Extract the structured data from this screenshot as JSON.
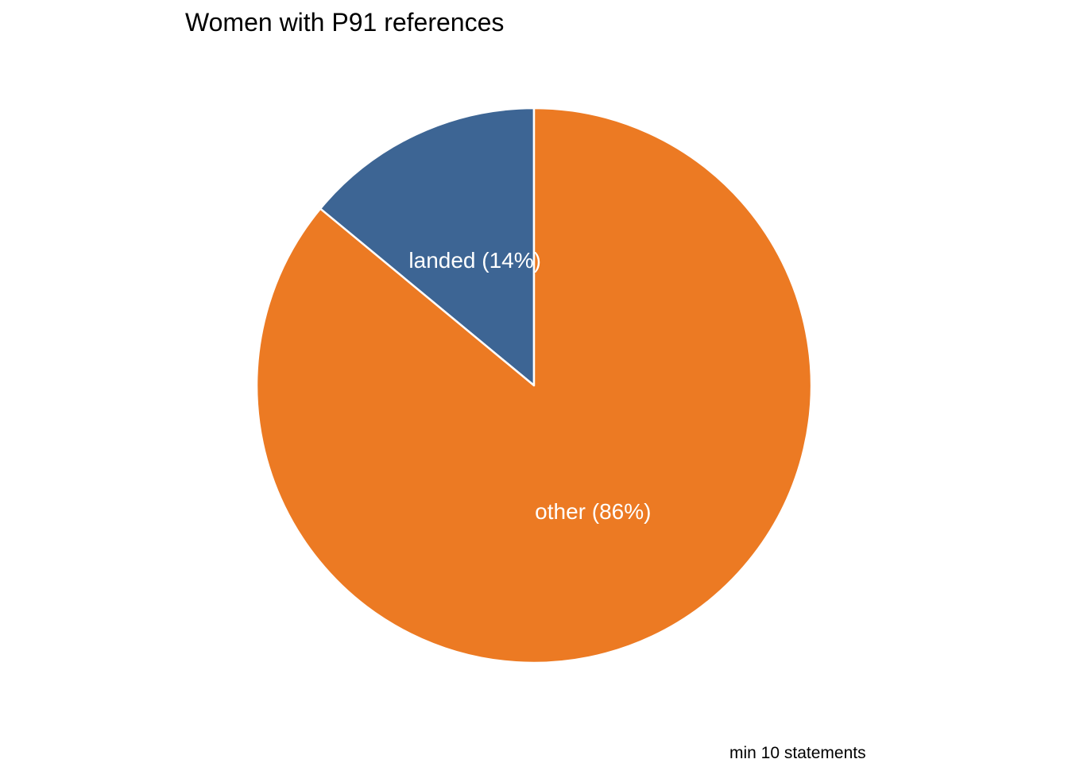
{
  "chart_data": {
    "type": "pie",
    "title": "Women with P91 references",
    "caption": "min 10 statements",
    "start_angle_deg": 0,
    "direction": "counterclockwise",
    "slices": [
      {
        "label": "landed (14%)",
        "category": "landed",
        "value": 14,
        "color": "#3D6594"
      },
      {
        "label": "other (86%)",
        "category": "other",
        "value": 86,
        "color": "#EC7A23"
      }
    ],
    "slice_border_color": "#ffffff",
    "legend": "none"
  }
}
